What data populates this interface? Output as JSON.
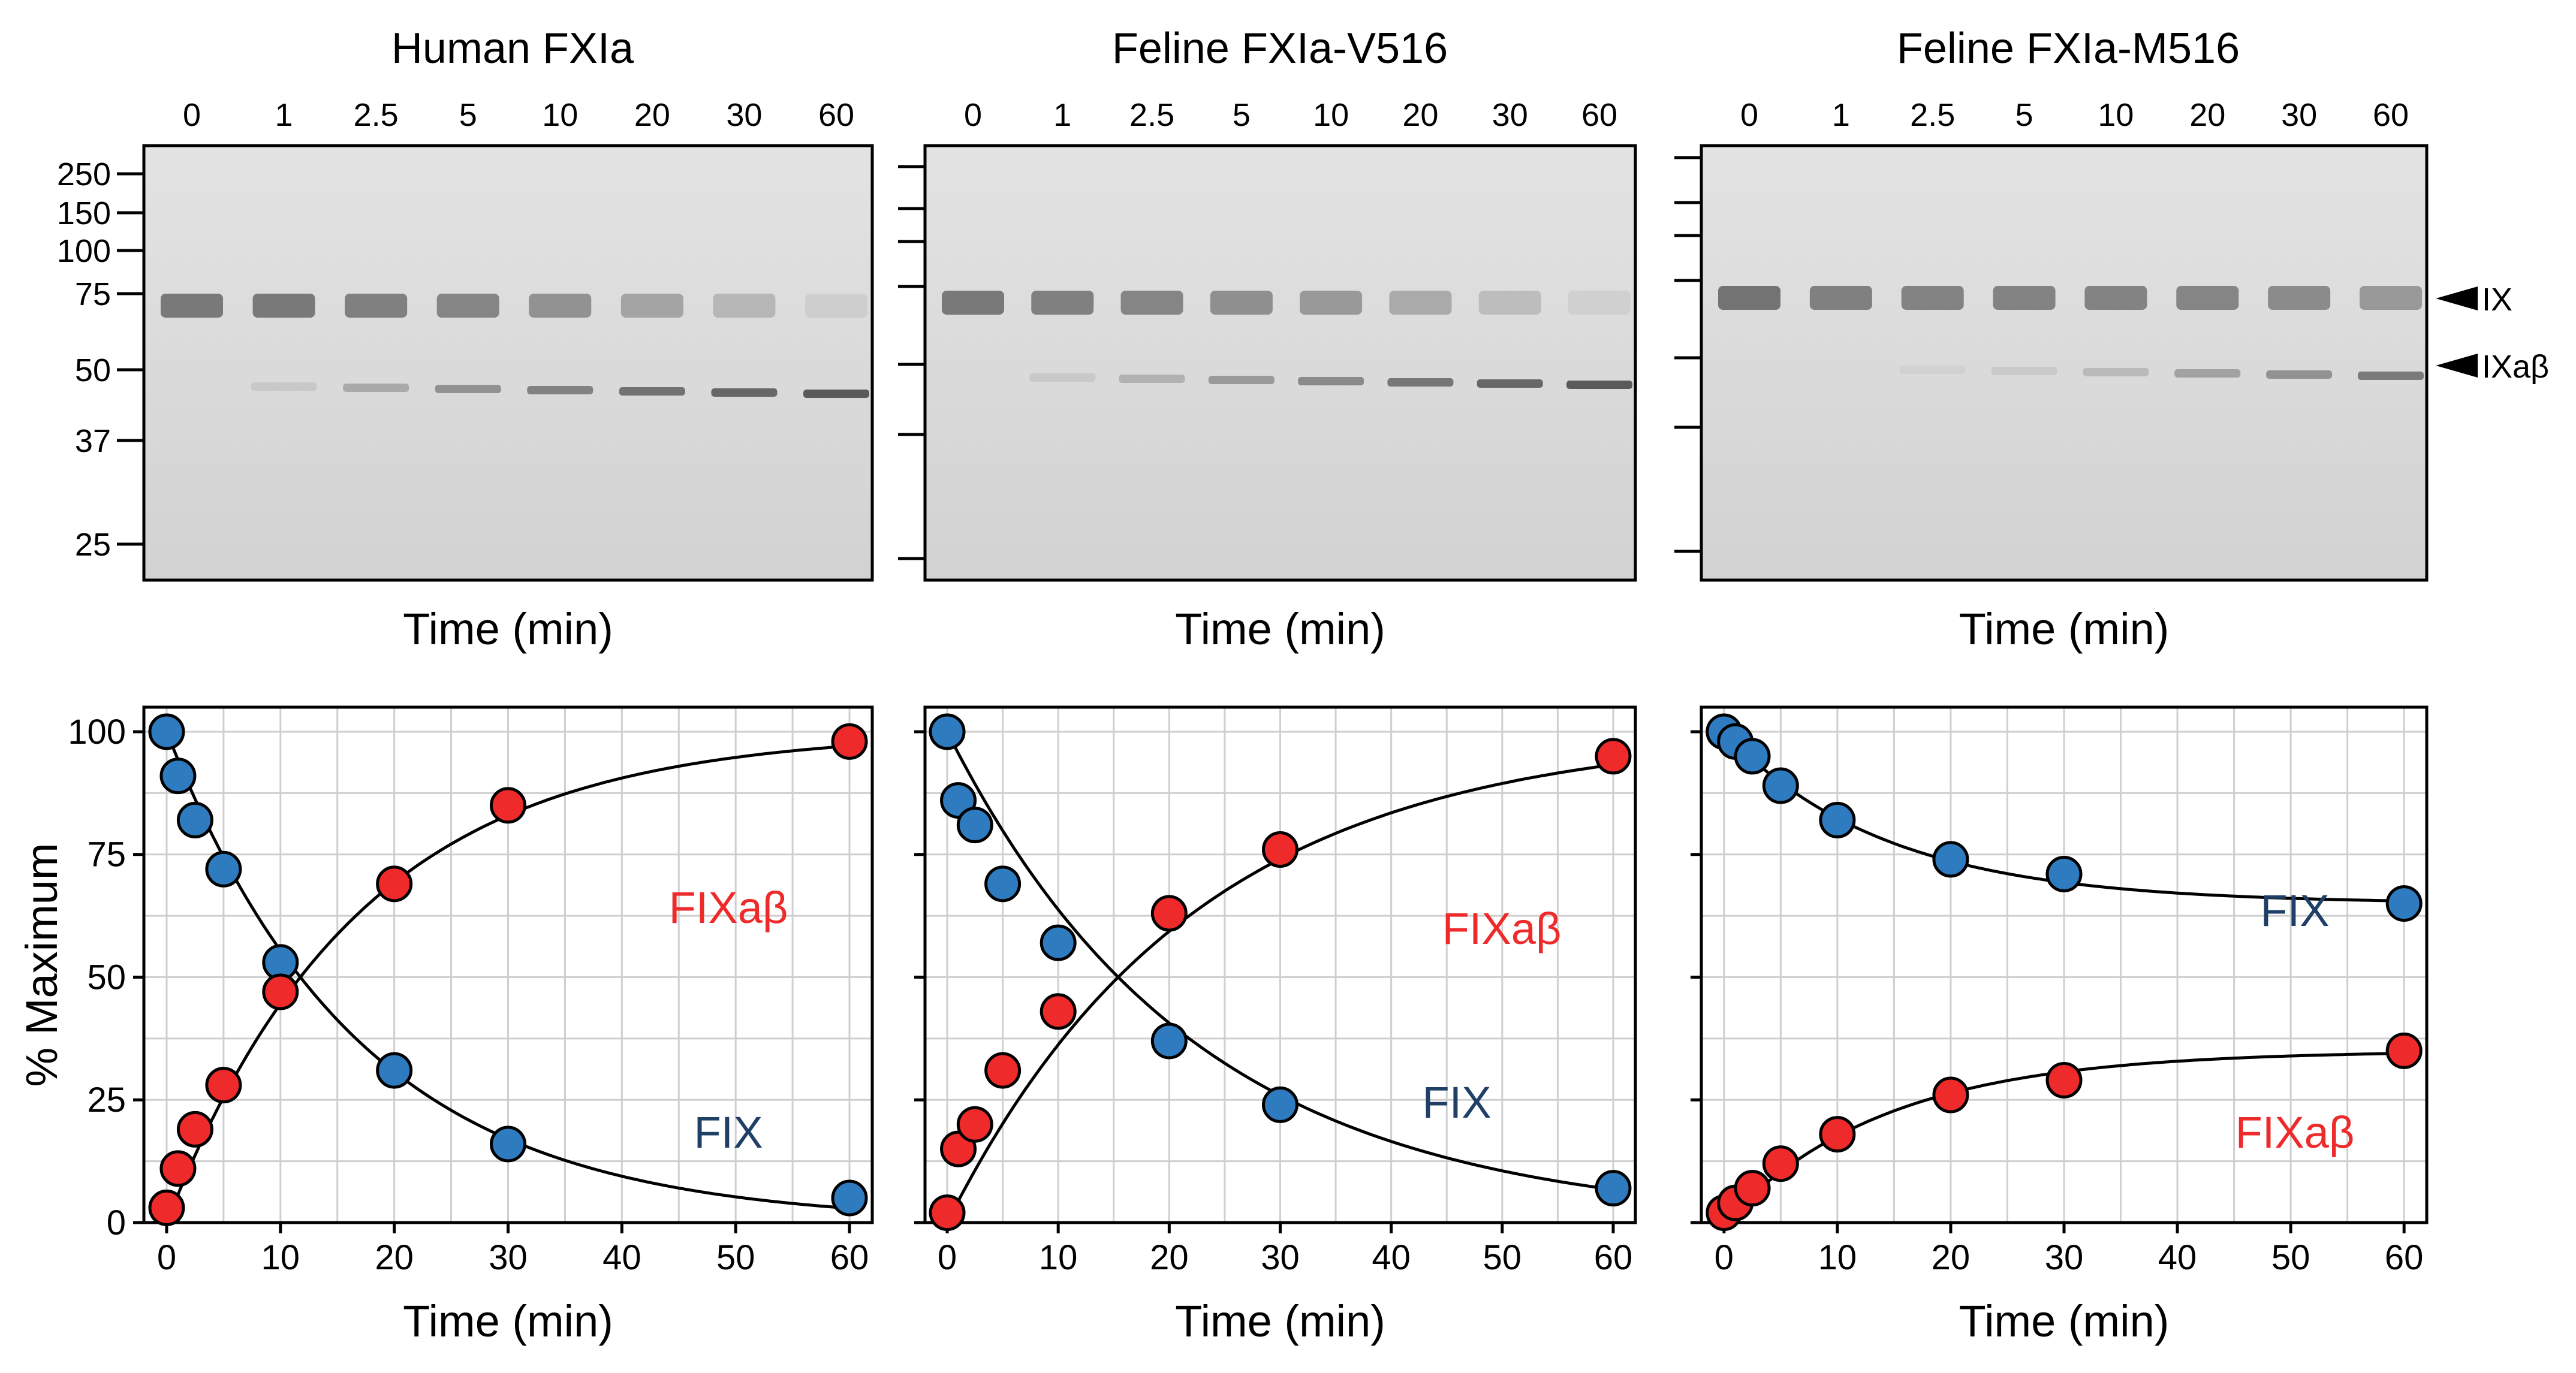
{
  "colors": {
    "fix": "#2e7bbf",
    "fixab": "#ee2a2a",
    "fix_label": "#1f3f66",
    "fixab_label": "#ee2a2a",
    "grid": "#cfcfcf",
    "gel_bg": "#dcdcdc",
    "band": "#606060"
  },
  "gel": {
    "lane_labels": [
      "0",
      "1",
      "2.5",
      "5",
      "10",
      "20",
      "30",
      "60"
    ],
    "mw_markers": [
      "250",
      "150",
      "100",
      "75",
      "50",
      "37",
      "25"
    ],
    "band_labels": {
      "upper": "IX",
      "lower": "IXaβ"
    },
    "xlabel": "Time (min)"
  },
  "panels": [
    {
      "title": "Human FXIa",
      "gel_intensity": {
        "ix": [
          0.8,
          0.8,
          0.75,
          0.7,
          0.6,
          0.45,
          0.3,
          0.12
        ],
        "ixab": [
          0.0,
          0.1,
          0.3,
          0.45,
          0.55,
          0.65,
          0.72,
          0.8
        ]
      }
    },
    {
      "title": "Feline FXIa-V516",
      "gel_intensity": {
        "ix": [
          0.8,
          0.75,
          0.7,
          0.62,
          0.55,
          0.4,
          0.25,
          0.1
        ],
        "ixab": [
          0.0,
          0.1,
          0.25,
          0.4,
          0.5,
          0.62,
          0.72,
          0.8
        ]
      }
    },
    {
      "title": "Feline FXIa-M516",
      "gel_intensity": {
        "ix": [
          0.85,
          0.75,
          0.72,
          0.72,
          0.72,
          0.7,
          0.65,
          0.55
        ],
        "ixab": [
          0.0,
          0.0,
          0.05,
          0.1,
          0.2,
          0.35,
          0.45,
          0.6
        ]
      }
    }
  ],
  "chart_data": [
    {
      "type": "scatter",
      "title": "Human FXIa",
      "xlabel": "Time (min)",
      "ylabel": "% Maximum",
      "xlim": [
        -2,
        62
      ],
      "ylim": [
        0,
        105
      ],
      "xticks": [
        0,
        10,
        20,
        30,
        40,
        50,
        60
      ],
      "yticks": [
        0,
        25,
        50,
        75,
        100
      ],
      "series": [
        {
          "name": "FIX",
          "label": "FIX",
          "color": "#2e7bbf",
          "x": [
            0,
            1,
            2.5,
            5,
            10,
            20,
            30,
            60
          ],
          "y": [
            100,
            91,
            82,
            72,
            53,
            31,
            16,
            5
          ],
          "fit": {
            "type": "decay",
            "k": 0.059,
            "plateau": 0
          }
        },
        {
          "name": "FIXaβ",
          "label": "FIXaβ",
          "color": "#ee2a2a",
          "x": [
            0,
            1,
            2.5,
            5,
            10,
            20,
            30,
            60
          ],
          "y": [
            3,
            11,
            19,
            28,
            47,
            69,
            85,
            98
          ],
          "fit": {
            "type": "rise",
            "k": 0.059,
            "plateau": 100
          }
        }
      ]
    },
    {
      "type": "scatter",
      "title": "Feline FXIa-V516",
      "xlabel": "Time (min)",
      "ylabel": "% Maximum",
      "xlim": [
        -2,
        62
      ],
      "ylim": [
        0,
        105
      ],
      "xticks": [
        0,
        10,
        20,
        30,
        40,
        50,
        60
      ],
      "yticks": [
        0,
        25,
        50,
        75,
        100
      ],
      "series": [
        {
          "name": "FIX",
          "label": "FIX",
          "color": "#2e7bbf",
          "x": [
            0,
            1,
            2.5,
            5,
            10,
            20,
            30,
            60
          ],
          "y": [
            100,
            86,
            81,
            69,
            57,
            37,
            24,
            7
          ],
          "fit": {
            "type": "decay",
            "k": 0.045,
            "plateau": 0
          }
        },
        {
          "name": "FIXaβ",
          "label": "FIXaβ",
          "color": "#ee2a2a",
          "x": [
            0,
            1,
            2.5,
            5,
            10,
            20,
            30,
            60
          ],
          "y": [
            2,
            15,
            20,
            31,
            43,
            63,
            76,
            95
          ],
          "fit": {
            "type": "rise",
            "k": 0.045,
            "plateau": 100
          }
        }
      ]
    },
    {
      "type": "scatter",
      "title": "Feline FXIa-M516",
      "xlabel": "Time (min)",
      "ylabel": "% Maximum",
      "xlim": [
        -2,
        62
      ],
      "ylim": [
        0,
        105
      ],
      "xticks": [
        0,
        10,
        20,
        30,
        40,
        50,
        60
      ],
      "yticks": [
        0,
        25,
        50,
        75,
        100
      ],
      "series": [
        {
          "name": "FIX",
          "label": "FIX",
          "color": "#2e7bbf",
          "x": [
            0,
            1,
            2.5,
            5,
            10,
            20,
            30,
            60
          ],
          "y": [
            100,
            98,
            95,
            89,
            82,
            74,
            71,
            65
          ],
          "fit": {
            "type": "decay",
            "k": 0.07,
            "plateau": 65
          }
        },
        {
          "name": "FIXaβ",
          "label": "FIXaβ",
          "color": "#ee2a2a",
          "x": [
            0,
            1,
            2.5,
            5,
            10,
            20,
            30,
            60
          ],
          "y": [
            2,
            4,
            7,
            12,
            18,
            26,
            29,
            35
          ],
          "fit": {
            "type": "rise",
            "k": 0.07,
            "plateau": 35
          }
        }
      ]
    }
  ]
}
